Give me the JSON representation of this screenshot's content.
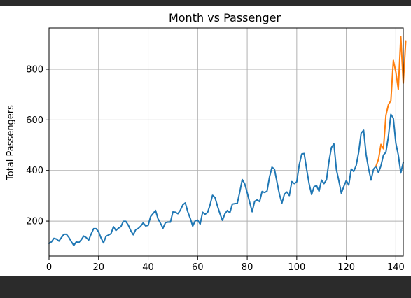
{
  "colors": {
    "page_background": "#2b2b2b",
    "figure_background": "#ffffff",
    "grid": "#b0b0b0",
    "axis": "#000000",
    "series_1": "#1f77b4",
    "series_2": "#ff7f0e"
  },
  "chart_data": {
    "type": "line",
    "title": "Month vs Passenger",
    "xlabel": "",
    "ylabel": "Total Passengers",
    "xlim": [
      0,
      143
    ],
    "ylim": [
      62,
      963
    ],
    "grid": true,
    "legend": "none",
    "x_ticks": [
      0,
      20,
      40,
      60,
      80,
      100,
      120,
      140
    ],
    "x_tick_labels": [
      "0",
      "20",
      "40",
      "60",
      "80",
      "100",
      "120",
      "140"
    ],
    "y_ticks": [
      200,
      400,
      600,
      800
    ],
    "y_tick_labels": [
      "200",
      "400",
      "600",
      "800"
    ],
    "series": [
      {
        "color": "#1f77b4",
        "x_start": 0,
        "values": [
          112,
          118,
          132,
          129,
          121,
          135,
          148,
          148,
          136,
          119,
          104,
          118,
          115,
          126,
          141,
          135,
          125,
          149,
          170,
          170,
          158,
          133,
          114,
          140,
          145,
          150,
          178,
          163,
          172,
          178,
          199,
          199,
          184,
          162,
          146,
          166,
          171,
          180,
          193,
          181,
          183,
          218,
          230,
          242,
          209,
          191,
          172,
          194,
          196,
          196,
          236,
          235,
          229,
          243,
          264,
          272,
          237,
          211,
          180,
          201,
          204,
          188,
          235,
          227,
          234,
          264,
          302,
          293,
          259,
          229,
          203,
          229,
          242,
          233,
          267,
          269,
          270,
          315,
          364,
          347,
          312,
          274,
          237,
          278,
          284,
          277,
          317,
          313,
          318,
          374,
          413,
          405,
          355,
          306,
          271,
          306,
          315,
          301,
          356,
          348,
          355,
          422,
          465,
          467,
          404,
          347,
          305,
          336,
          340,
          318,
          362,
          348,
          363,
          435,
          491,
          505,
          404,
          359,
          310,
          337,
          360,
          342,
          406,
          396,
          420,
          472,
          548,
          559,
          463,
          407,
          362,
          405,
          417,
          391,
          419,
          461,
          472,
          535,
          622,
          606,
          508,
          461,
          390,
          432
        ]
      },
      {
        "color": "#ff7f0e",
        "x_start": 132,
        "values": [
          417,
          444,
          503,
          486,
          618,
          660,
          676,
          835,
          789,
          721,
          930,
          745,
          912
        ]
      }
    ]
  }
}
